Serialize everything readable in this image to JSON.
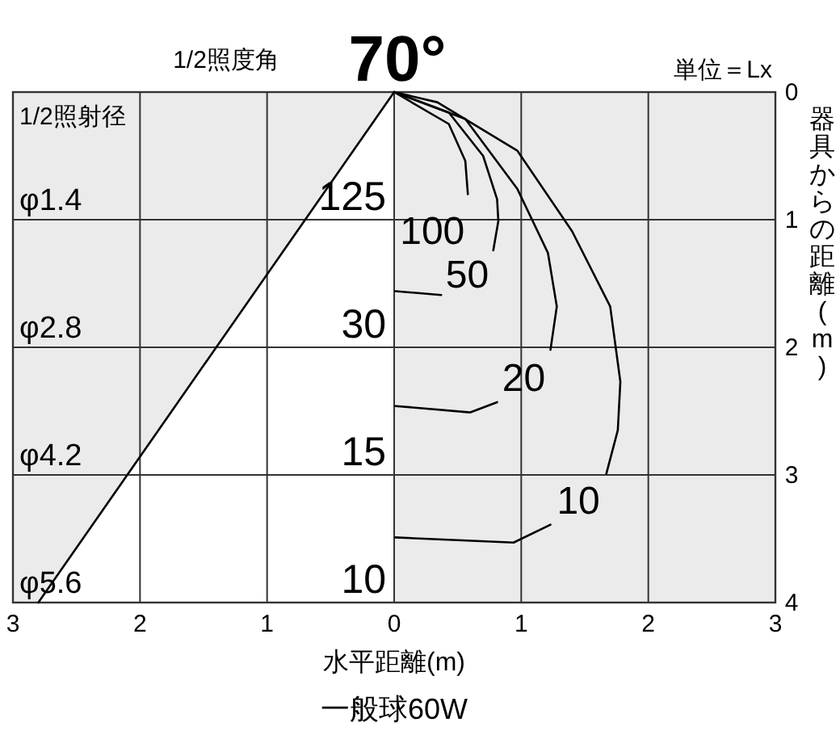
{
  "chart_data": {
    "type": "line",
    "title": "70°",
    "subtitle": "1/2照度角",
    "xlabel": "水平距離(m)",
    "ylabel": "器具からの距離(m)",
    "xlim": [
      -3,
      3
    ],
    "ylim": [
      4,
      0
    ],
    "xticks": [
      {
        "value": -3,
        "label": "3"
      },
      {
        "value": -2,
        "label": "2"
      },
      {
        "value": -1,
        "label": "1"
      },
      0,
      1,
      2,
      3
    ],
    "yticks": [
      0,
      1,
      2,
      3,
      4
    ],
    "grid": true,
    "series": [
      {
        "type": "line",
        "color": "#000000",
        "x": [
          0,
          -2.8
        ],
        "values": [
          0,
          4
        ]
      },
      {
        "name": "100",
        "color": "#000000",
        "x": [
          0,
          0.43,
          0.56,
          0.58
        ],
        "values": [
          0,
          0.25,
          0.54,
          0.8
        ]
      },
      {
        "name": "50",
        "color": "#000000",
        "x": [
          0,
          0.43,
          0.7,
          0.81,
          0.82,
          0.78,
          null,
          0.37,
          0.01
        ],
        "values": [
          0,
          0.16,
          0.5,
          0.84,
          1.01,
          1.24,
          null,
          1.59,
          1.56
        ]
      },
      {
        "name": "20",
        "color": "#000000",
        "x": [
          0,
          0.56,
          0.97,
          1.21,
          1.28,
          1.23,
          null,
          0.81,
          0.6,
          0.01
        ],
        "values": [
          0,
          0.21,
          0.76,
          1.26,
          1.68,
          2.02,
          null,
          2.43,
          2.51,
          2.46
        ]
      },
      {
        "name": "10",
        "color": "#000000",
        "x": [
          0,
          0.34,
          0.97,
          1.4,
          1.7,
          1.78,
          1.76,
          1.67,
          null,
          1.23,
          0.94,
          0.01
        ],
        "values": [
          0,
          0.08,
          0.46,
          1.09,
          1.68,
          2.27,
          2.65,
          2.99,
          null,
          3.39,
          3.53,
          3.49
        ]
      }
    ],
    "annotations": [
      "単位＝Lx",
      "一般球60W",
      "1/2照射径",
      "125",
      "30",
      "15",
      "10",
      "φ1.4",
      "φ2.8",
      "φ4.2",
      "φ5.6"
    ]
  }
}
